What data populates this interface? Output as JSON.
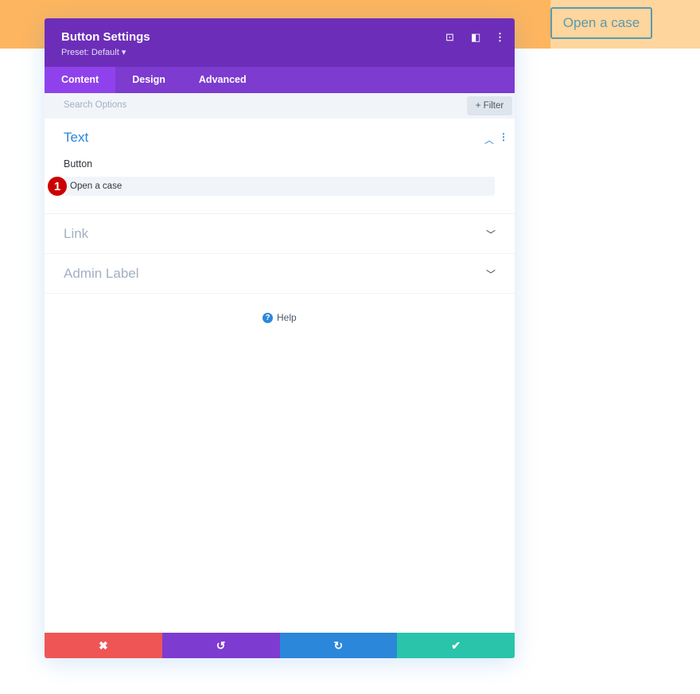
{
  "page": {
    "button_label": "Open a case",
    "colors": {
      "bg_left": "#fdb55f",
      "bg_right": "#fed59d"
    }
  },
  "modal": {
    "title": "Button Settings",
    "preset": "Preset: Default ▾",
    "tabs": [
      {
        "label": "Content",
        "active": true
      },
      {
        "label": "Design"
      },
      {
        "label": "Advanced"
      }
    ],
    "search_placeholder": "Search Options",
    "filter_label": "+ Filter",
    "sections": {
      "text": {
        "title": "Text",
        "field_label": "Button",
        "field_value": "Open a case",
        "badge": "1"
      },
      "link": {
        "title": "Link"
      },
      "admin": {
        "title": "Admin Label"
      }
    },
    "help": "Help",
    "footer_icons": [
      "close-icon",
      "undo-icon",
      "redo-icon",
      "check-icon"
    ]
  }
}
